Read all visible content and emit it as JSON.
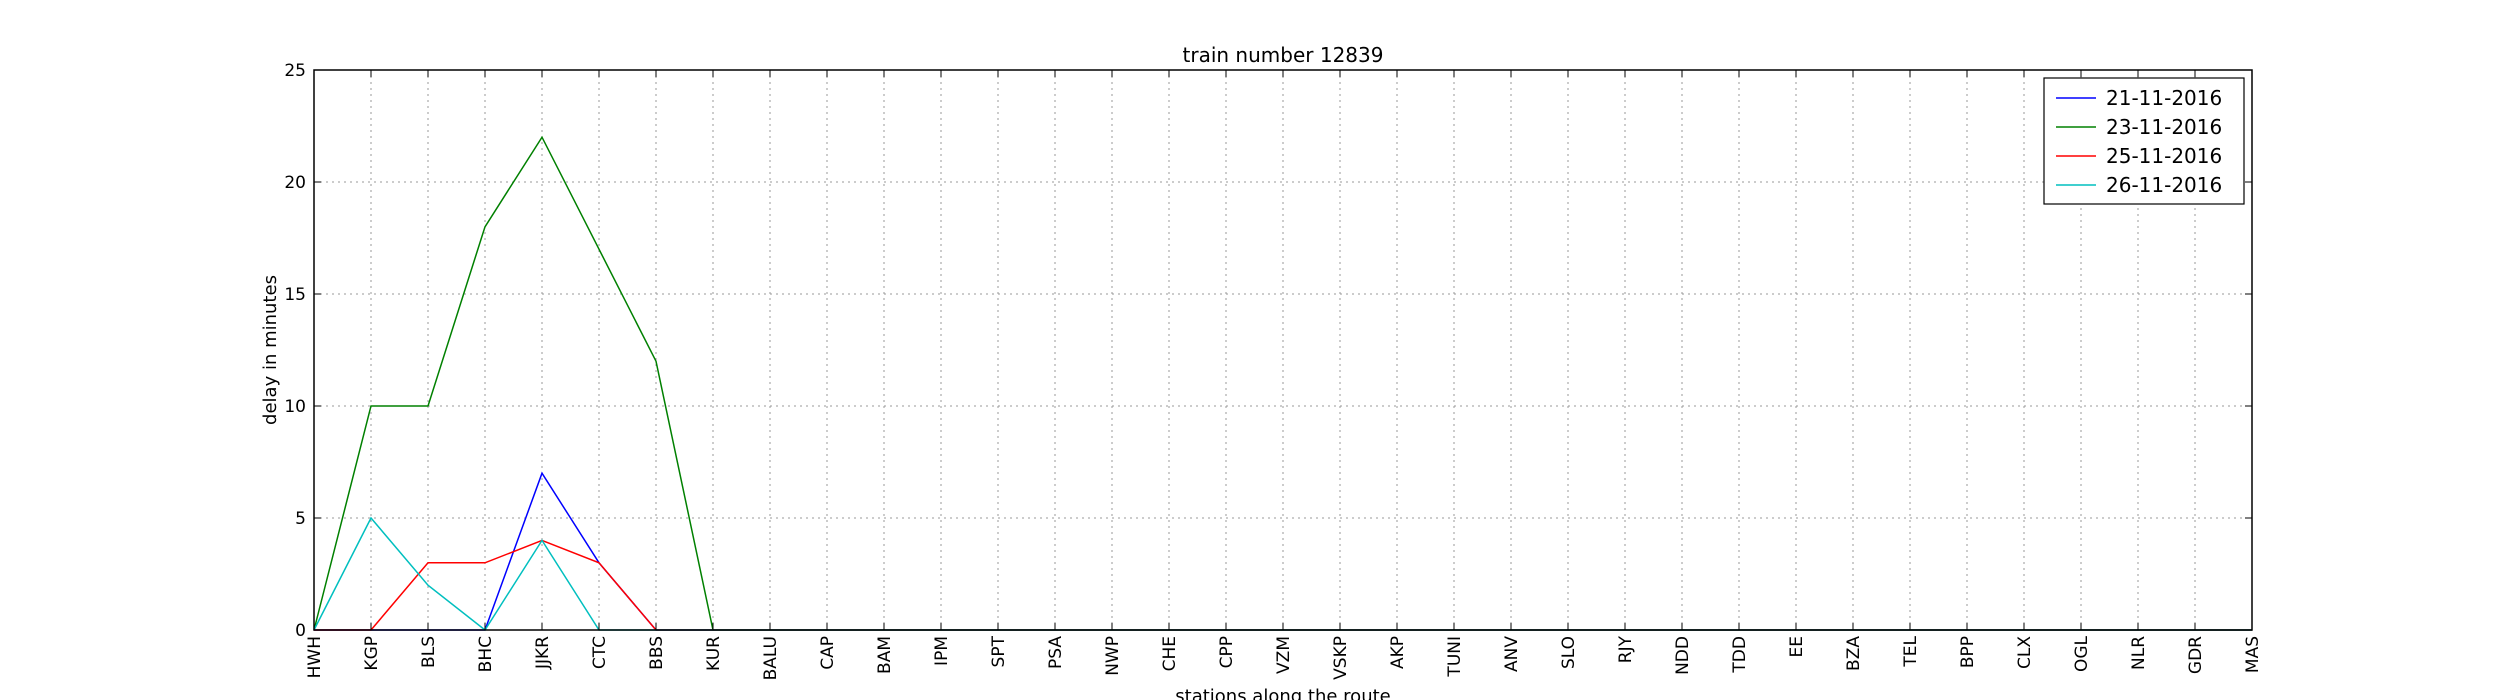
{
  "chart_data": {
    "type": "line",
    "title": "train number 12839",
    "xlabel": "stations along the route",
    "ylabel": "delay in minutes",
    "ylim": [
      0,
      25
    ],
    "yticks": [
      0,
      5,
      10,
      15,
      20,
      25
    ],
    "grid": true,
    "legend_position": "top-right",
    "categories": [
      "HWH",
      "KGP",
      "BLS",
      "BHC",
      "JJKR",
      "CTC",
      "BBS",
      "KUR",
      "BALU",
      "CAP",
      "BAM",
      "IPM",
      "SPT",
      "PSA",
      "NWP",
      "CHE",
      "CPP",
      "VZM",
      "VSKP",
      "AKP",
      "TUNI",
      "ANV",
      "SLO",
      "RJY",
      "NDD",
      "TDD",
      "EE",
      "BZA",
      "TEL",
      "BPP",
      "CLX",
      "OGL",
      "NLR",
      "GDR",
      "MAS"
    ],
    "series": [
      {
        "name": "21-11-2016",
        "color": "#0000ff",
        "values": [
          0,
          0,
          0,
          0,
          7,
          3,
          0,
          0,
          0,
          0,
          0,
          0,
          0,
          0,
          0,
          0,
          0,
          0,
          0,
          0,
          0,
          0,
          0,
          0,
          0,
          0,
          0,
          0,
          0,
          0,
          0,
          0,
          0,
          0,
          0
        ]
      },
      {
        "name": "23-11-2016",
        "color": "#008000",
        "values": [
          0,
          10,
          10,
          18,
          22,
          17,
          12,
          0,
          0,
          0,
          0,
          0,
          0,
          0,
          0,
          0,
          0,
          0,
          0,
          0,
          0,
          0,
          0,
          0,
          0,
          0,
          0,
          0,
          0,
          0,
          0,
          0,
          0,
          0,
          0
        ]
      },
      {
        "name": "25-11-2016",
        "color": "#ff0000",
        "values": [
          0,
          0,
          3,
          3,
          4,
          3,
          0,
          0,
          0,
          0,
          0,
          0,
          0,
          0,
          0,
          0,
          0,
          0,
          0,
          0,
          0,
          0,
          0,
          0,
          0,
          0,
          0,
          0,
          0,
          0,
          0,
          0,
          0,
          0,
          0
        ]
      },
      {
        "name": "26-11-2016",
        "color": "#00bfbf",
        "values": [
          0,
          5,
          2,
          0,
          4,
          0,
          0,
          0,
          0,
          0,
          0,
          0,
          0,
          0,
          0,
          0,
          0,
          0,
          0,
          0,
          0,
          0,
          0,
          0,
          0,
          0,
          0,
          0,
          0,
          0,
          0,
          0,
          0,
          0,
          0
        ]
      }
    ]
  }
}
